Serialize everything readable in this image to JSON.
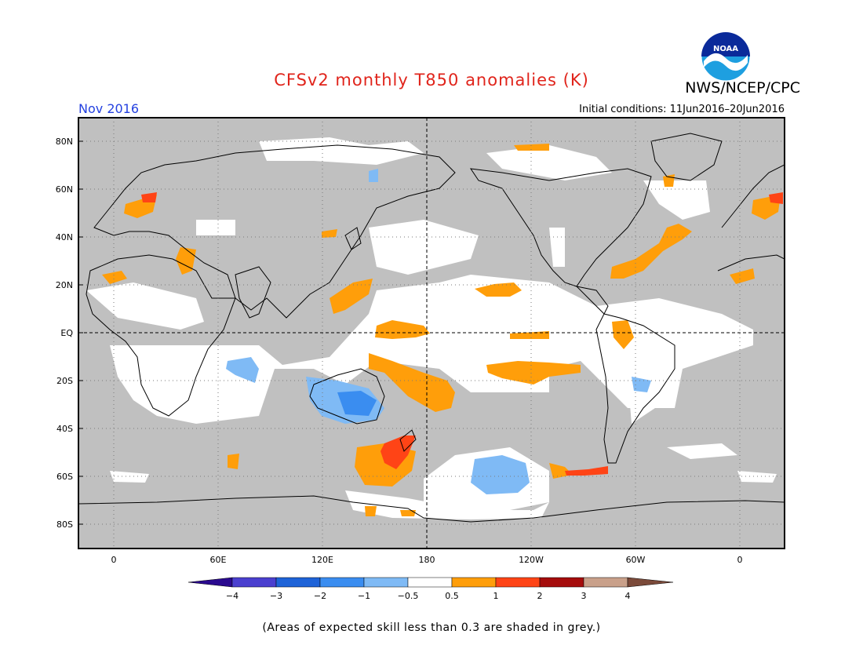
{
  "header": {
    "title": "CFSv2 monthly T850 anomalies (K)",
    "agency": "NWS/NCEP/CPC",
    "month": "Nov 2016",
    "initial_conditions": "Initial conditions: 11Jun2016–20Jun2016",
    "logo_text": "NOAA"
  },
  "map": {
    "lat_labels": [
      "80N",
      "60N",
      "40N",
      "20N",
      "EQ",
      "20S",
      "40S",
      "60S",
      "80S"
    ],
    "lon_labels": [
      "0",
      "60E",
      "120E",
      "180",
      "120W",
      "60W",
      "0"
    ],
    "colors": {
      "grey_low_skill": "#c0c0c0",
      "land_outline": "#000000"
    }
  },
  "colorbar": {
    "labels": [
      "−4",
      "−3",
      "−2",
      "−1",
      "−0.5",
      "0.5",
      "1",
      "2",
      "3",
      "4"
    ],
    "colors": [
      "#2a0a8f",
      "#4a3fcf",
      "#1e63d8",
      "#3a8df0",
      "#7fbaf5",
      "#ffffff",
      "#ff9e0a",
      "#ff4416",
      "#a50c0c",
      "#c9a08a",
      "#7b4a3a"
    ]
  },
  "footnote": "(Areas of expected skill less than 0.3 are shaded in grey.)"
}
